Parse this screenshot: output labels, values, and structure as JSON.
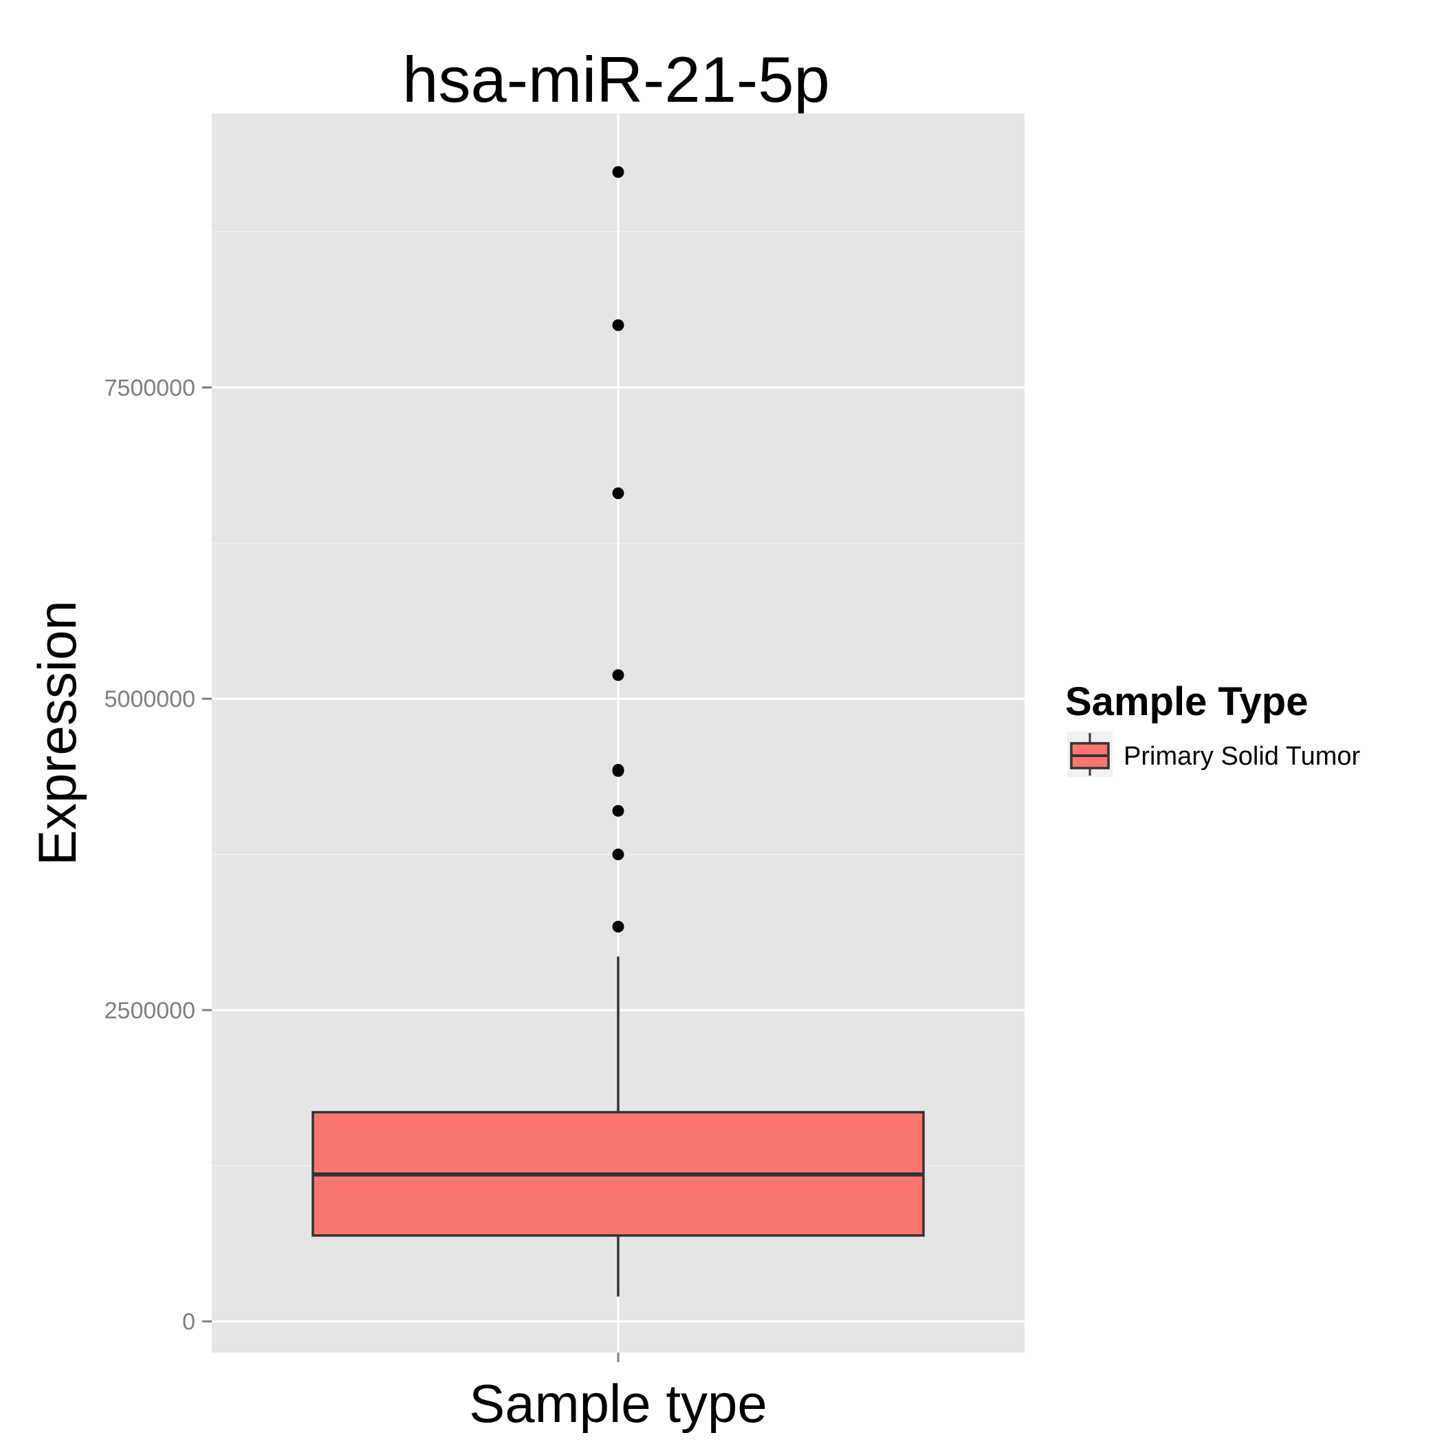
{
  "chart_data": {
    "type": "box",
    "title": "hsa-miR-21-5p",
    "xlabel": "Sample type",
    "ylabel": "Expression",
    "ylim": [
      -250000,
      9700000
    ],
    "y_ticks": [
      0,
      2500000,
      5000000,
      7500000
    ],
    "y_tick_labels": [
      "0",
      "2500000",
      "5000000",
      "7500000"
    ],
    "grid": true,
    "categories": [
      ""
    ],
    "series": [
      {
        "name": "Primary Solid Tumor",
        "color": "#F8766D",
        "whisker_low": 200000,
        "q1": 690000,
        "median": 1180000,
        "q3": 1680000,
        "whisker_high": 2930000,
        "outliers": [
          3170000,
          3750000,
          4100000,
          4420000,
          4430000,
          5190000,
          6650000,
          8000000,
          9230000
        ]
      }
    ],
    "legend": {
      "title": "Sample Type",
      "placement": "right"
    }
  }
}
